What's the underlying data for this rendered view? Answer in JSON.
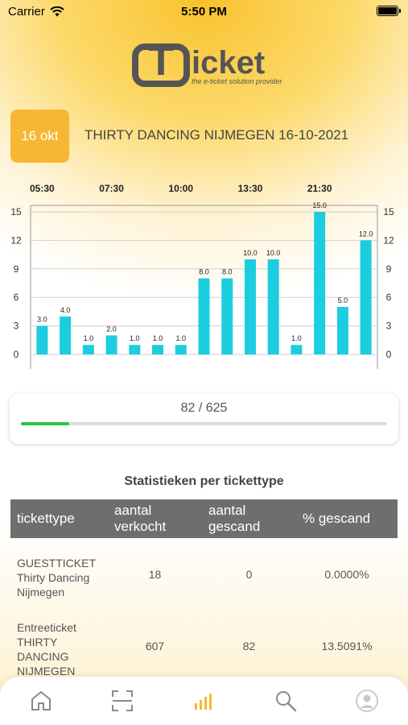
{
  "status_bar": {
    "carrier": "Carrier",
    "time": "5:50 PM"
  },
  "logo": {
    "initial": "T",
    "rest": "icket",
    "tagline": "the e-ticket solution provider"
  },
  "event": {
    "date_badge": "16 okt",
    "title": "THIRTY DANCING NIJMEGEN 16-10-2021"
  },
  "chart_data": {
    "type": "bar",
    "values": [
      3.0,
      4.0,
      1.0,
      2.0,
      1.0,
      1.0,
      1.0,
      8.0,
      8.0,
      10.0,
      10.0,
      1.0,
      15.0,
      5.0,
      12.0
    ],
    "value_labels": [
      "3.0",
      "4.0",
      "1.0",
      "2.0",
      "1.0",
      "1.0",
      "1.0",
      "8.0",
      "8.0",
      "10.0",
      "10.0",
      "1.0",
      "15.0",
      "5.0",
      "12.0"
    ],
    "x_tick_labels": [
      "05:30",
      "07:30",
      "10:00",
      "13:30",
      "21:30"
    ],
    "y_tick_labels": [
      "0",
      "3",
      "6",
      "9",
      "12",
      "15"
    ],
    "ylim": [
      0,
      15
    ],
    "grid": true,
    "bar_color": "#1ccde0"
  },
  "progress": {
    "label": "82 / 625",
    "value": 82,
    "total": 625,
    "color": "#2bc44a"
  },
  "stats": {
    "heading": "Statistieken per tickettype",
    "columns": [
      "tickettype",
      "aantal verkocht",
      "aantal gescand",
      "% gescand"
    ],
    "rows": [
      {
        "name": "GUESTTICKET Thirty Dancing Nijmegen",
        "sold": "18",
        "scanned": "0",
        "pct": "0.0000%"
      },
      {
        "name": "Entreeticket THIRTY DANCING NIJMEGEN",
        "sold": "607",
        "scanned": "82",
        "pct": "13.5091%"
      }
    ]
  },
  "tabs": [
    {
      "icon": "home-icon",
      "active": false
    },
    {
      "icon": "scan-icon",
      "active": false
    },
    {
      "icon": "stats-icon",
      "active": true
    },
    {
      "icon": "search-icon",
      "active": false
    },
    {
      "icon": "profile-icon",
      "active": false
    }
  ],
  "colors": {
    "accent": "#f7b733",
    "header_gray": "#6e6e6e",
    "tab_active": "#f7b733",
    "tab_inactive": "#8a8a8a"
  }
}
